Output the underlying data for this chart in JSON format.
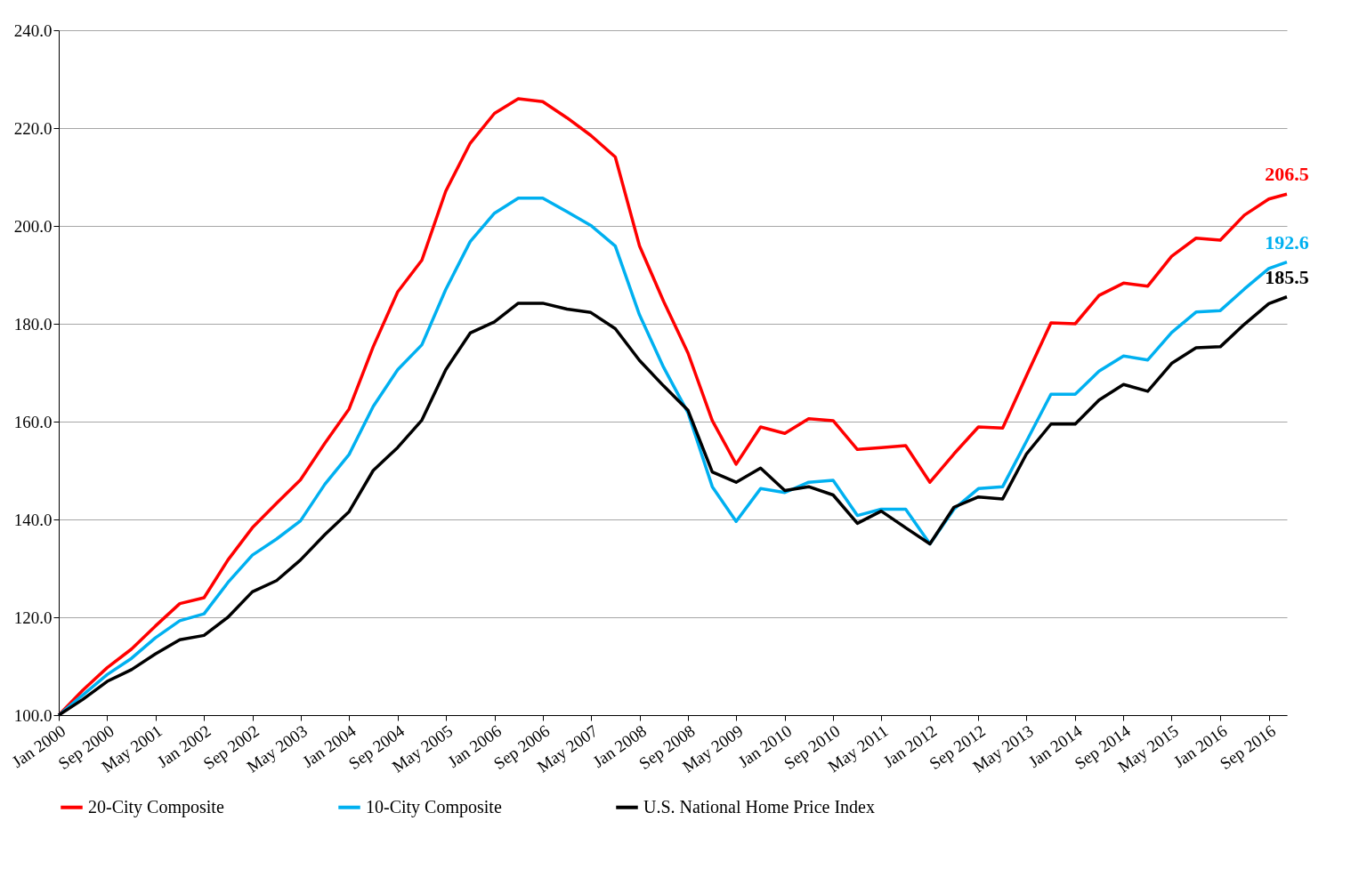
{
  "chart_data": {
    "type": "line",
    "x": [
      "2000-01",
      "2000-05",
      "2000-09",
      "2001-01",
      "2001-05",
      "2001-09",
      "2002-01",
      "2002-05",
      "2002-09",
      "2003-01",
      "2003-05",
      "2003-09",
      "2004-01",
      "2004-05",
      "2004-09",
      "2005-01",
      "2005-05",
      "2005-09",
      "2006-01",
      "2006-05",
      "2006-09",
      "2007-01",
      "2007-05",
      "2007-09",
      "2008-01",
      "2008-05",
      "2008-09",
      "2009-01",
      "2009-05",
      "2009-09",
      "2010-01",
      "2010-05",
      "2010-09",
      "2011-01",
      "2011-05",
      "2011-09",
      "2012-01",
      "2012-05",
      "2012-09",
      "2013-01",
      "2013-05",
      "2013-09",
      "2014-01",
      "2014-05",
      "2014-09",
      "2015-01",
      "2015-05",
      "2015-09",
      "2016-01",
      "2016-05",
      "2016-09",
      "2016-12"
    ],
    "series": [
      {
        "name": "20-City Composite",
        "color": "#ff0000",
        "values": [
          100,
          105.1,
          109.7,
          113.5,
          118.2,
          122.8,
          124,
          131.7,
          138.3,
          143.3,
          148.1,
          155.6,
          162.6,
          175.3,
          186.5,
          193,
          207.1,
          216.9,
          223,
          226,
          225.4,
          222.1,
          218.5,
          214.1,
          195.9,
          184.6,
          174,
          160.2,
          151.3,
          158.9,
          157.6,
          160.6,
          160.2,
          154.3,
          154.7,
          155.1,
          147.6,
          153.4,
          158.9,
          158.7,
          169.4,
          180.2,
          180,
          185.8,
          188.3,
          187.7,
          193.8,
          197.5,
          197.1,
          202.2,
          205.5,
          206.5
        ],
        "value_labels": [
          null,
          null,
          null,
          null,
          null,
          null,
          null,
          null,
          null,
          null,
          null,
          null,
          null,
          null,
          null,
          null,
          null,
          null,
          null,
          null,
          null,
          null,
          null,
          null,
          null,
          null,
          null,
          null,
          null,
          null,
          null,
          null,
          null,
          null,
          null,
          null,
          null,
          null,
          null,
          null,
          null,
          null,
          null,
          null,
          null,
          null,
          null,
          null,
          null,
          null,
          null,
          "206.5"
        ]
      },
      {
        "name": "10-City Composite",
        "color": "#00b0f0",
        "values": [
          100,
          104.1,
          108.3,
          111.6,
          115.8,
          119.3,
          120.7,
          127.1,
          132.7,
          136,
          139.7,
          147.2,
          153.3,
          163.1,
          170.6,
          175.7,
          187,
          196.8,
          202.6,
          205.7,
          205.7,
          202.9,
          200.1,
          195.9,
          181.8,
          171.1,
          161.8,
          146.7,
          139.6,
          146.3,
          145.5,
          147.6,
          148,
          140.8,
          142.1,
          142.1,
          135,
          142.1,
          146.3,
          146.7,
          156,
          165.6,
          165.6,
          170.3,
          173.4,
          172.6,
          178.2,
          182.4,
          182.7,
          187.1,
          191.3,
          192.6
        ],
        "value_labels": [
          null,
          null,
          null,
          null,
          null,
          null,
          null,
          null,
          null,
          null,
          null,
          null,
          null,
          null,
          null,
          null,
          null,
          null,
          null,
          null,
          null,
          null,
          null,
          null,
          null,
          null,
          null,
          null,
          null,
          null,
          null,
          null,
          null,
          null,
          null,
          null,
          null,
          null,
          null,
          null,
          null,
          null,
          null,
          null,
          null,
          null,
          null,
          null,
          null,
          null,
          null,
          "192.6"
        ]
      },
      {
        "name": "U.S. National Home Price Index",
        "color": "#000000",
        "values": [
          100,
          103.2,
          106.9,
          109.3,
          112.5,
          115.4,
          116.3,
          120,
          125.2,
          127.5,
          131.7,
          136.9,
          141.6,
          150,
          154.7,
          160.3,
          170.6,
          178.1,
          180.4,
          184.2,
          184.2,
          183,
          182.3,
          179,
          172.5,
          167.3,
          162.3,
          149.7,
          147.6,
          150.5,
          145.9,
          146.7,
          145,
          139.2,
          141.7,
          138.3,
          135,
          142.5,
          144.6,
          144.2,
          153.4,
          159.5,
          159.5,
          164.4,
          167.6,
          166.2,
          171.9,
          175.1,
          175.3,
          179.9,
          184.1,
          185.5
        ],
        "value_labels": [
          null,
          null,
          null,
          null,
          null,
          null,
          null,
          null,
          null,
          null,
          null,
          null,
          null,
          null,
          null,
          null,
          null,
          null,
          null,
          null,
          null,
          null,
          null,
          null,
          null,
          null,
          null,
          null,
          null,
          null,
          null,
          null,
          null,
          null,
          null,
          null,
          null,
          null,
          null,
          null,
          null,
          null,
          null,
          null,
          null,
          null,
          null,
          null,
          null,
          null,
          null,
          "185.5"
        ]
      }
    ],
    "xlim": [
      "2000-01",
      "2016-12"
    ],
    "xticks": [
      {
        "value": "2000-01",
        "label": "Jan 2000"
      },
      {
        "value": "2000-09",
        "label": "Sep 2000"
      },
      {
        "value": "2001-05",
        "label": "May 2001"
      },
      {
        "value": "2002-01",
        "label": "Jan 2002"
      },
      {
        "value": "2002-09",
        "label": "Sep 2002"
      },
      {
        "value": "2003-05",
        "label": "May 2003"
      },
      {
        "value": "2004-01",
        "label": "Jan 2004"
      },
      {
        "value": "2004-09",
        "label": "Sep 2004"
      },
      {
        "value": "2005-05",
        "label": "May 2005"
      },
      {
        "value": "2006-01",
        "label": "Jan 2006"
      },
      {
        "value": "2006-09",
        "label": "Sep 2006"
      },
      {
        "value": "2007-05",
        "label": "May 2007"
      },
      {
        "value": "2008-01",
        "label": "Jan 2008"
      },
      {
        "value": "2008-09",
        "label": "Sep 2008"
      },
      {
        "value": "2009-05",
        "label": "May 2009"
      },
      {
        "value": "2010-01",
        "label": "Jan 2010"
      },
      {
        "value": "2010-09",
        "label": "Sep 2010"
      },
      {
        "value": "2011-05",
        "label": "May 2011"
      },
      {
        "value": "2012-01",
        "label": "Jan 2012"
      },
      {
        "value": "2012-09",
        "label": "Sep 2012"
      },
      {
        "value": "2013-05",
        "label": "May 2013"
      },
      {
        "value": "2014-01",
        "label": "Jan 2014"
      },
      {
        "value": "2014-09",
        "label": "Sep 2014"
      },
      {
        "value": "2015-05",
        "label": "May 2015"
      },
      {
        "value": "2016-01",
        "label": "Jan 2016"
      },
      {
        "value": "2016-09",
        "label": "Sep 2016"
      }
    ],
    "ylim": [
      100,
      240
    ],
    "yticks": [
      {
        "value": 100,
        "label": "100.0"
      },
      {
        "value": 120,
        "label": "120.0"
      },
      {
        "value": 140,
        "label": "140.0"
      },
      {
        "value": 160,
        "label": "160.0"
      },
      {
        "value": 180,
        "label": "180.0"
      },
      {
        "value": 200,
        "label": "200.0"
      },
      {
        "value": 220,
        "label": "220.0"
      },
      {
        "value": 240,
        "label": "240.0"
      }
    ],
    "grid": "y",
    "legend": "bottom",
    "marker": "none",
    "line_style": "solid"
  }
}
